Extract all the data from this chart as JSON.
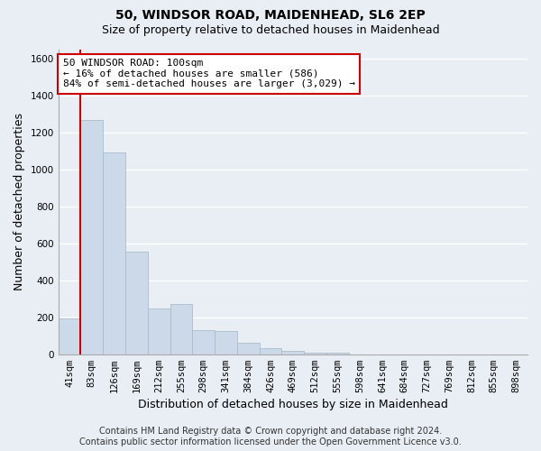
{
  "title1": "50, WINDSOR ROAD, MAIDENHEAD, SL6 2EP",
  "title2": "Size of property relative to detached houses in Maidenhead",
  "xlabel": "Distribution of detached houses by size in Maidenhead",
  "ylabel": "Number of detached properties",
  "categories": [
    "41sqm",
    "83sqm",
    "126sqm",
    "169sqm",
    "212sqm",
    "255sqm",
    "298sqm",
    "341sqm",
    "384sqm",
    "426sqm",
    "469sqm",
    "512sqm",
    "555sqm",
    "598sqm",
    "641sqm",
    "684sqm",
    "727sqm",
    "769sqm",
    "812sqm",
    "855sqm",
    "898sqm"
  ],
  "values": [
    195,
    1270,
    1095,
    555,
    250,
    270,
    130,
    125,
    60,
    35,
    18,
    10,
    10,
    0,
    0,
    0,
    0,
    0,
    0,
    0,
    0
  ],
  "bar_color": "#ccd9e8",
  "bar_edge_color": "#aabccc",
  "vline_color": "#cc0000",
  "annotation_text": "50 WINDSOR ROAD: 100sqm\n← 16% of detached houses are smaller (586)\n84% of semi-detached houses are larger (3,029) →",
  "annotation_box_color": "#ffffff",
  "annotation_box_edge": "#cc0000",
  "ylim": [
    0,
    1650
  ],
  "yticks": [
    0,
    200,
    400,
    600,
    800,
    1000,
    1200,
    1400,
    1600
  ],
  "footer1": "Contains HM Land Registry data © Crown copyright and database right 2024.",
  "footer2": "Contains public sector information licensed under the Open Government Licence v3.0.",
  "background_color": "#e8eef4",
  "grid_color": "#ffffff",
  "title1_fontsize": 10,
  "title2_fontsize": 9,
  "tick_fontsize": 7.5,
  "ylabel_fontsize": 9,
  "xlabel_fontsize": 9,
  "footer_fontsize": 7,
  "ann_fontsize": 8
}
